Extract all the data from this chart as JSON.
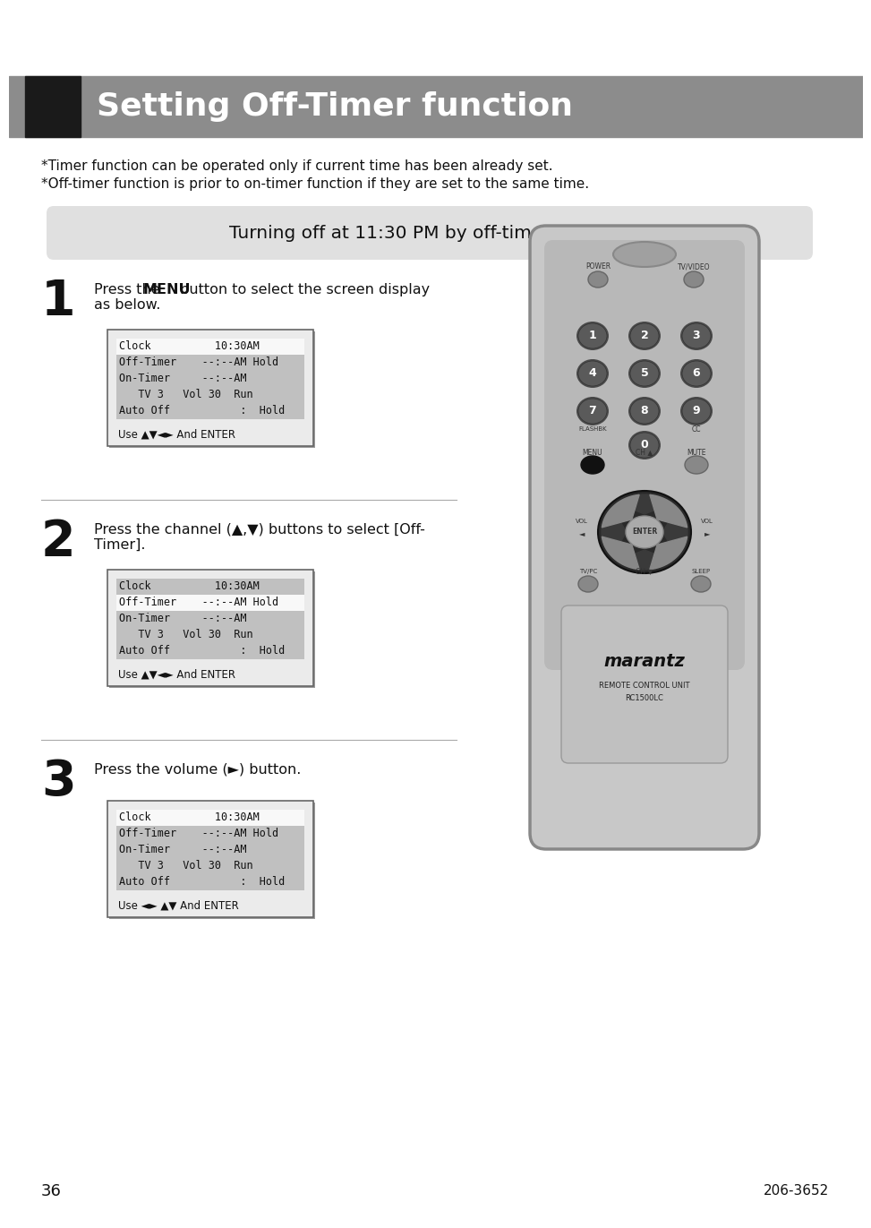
{
  "page_bg": "#ffffff",
  "title_bg": "#8c8c8c",
  "title_black_bg": "#1a1a1a",
  "title_text": "Setting Off-Timer function",
  "title_text_color": "#ffffff",
  "subtitle_bg": "#e0e0e0",
  "subtitle_text": "Turning off at 11:30 PM by off-timer function",
  "note1": "*Timer function can be operated only if current time has been already set.",
  "note2": "*Off-timer function is prior to on-timer function if they are set to the same time.",
  "step1_num": "1",
  "step1_text1": "Press the ",
  "step1_bold": "MENU",
  "step1_text2": " button to select the screen display\nas below.",
  "step2_num": "2",
  "step2_text": "Press the channel (▲,▼) buttons to select [Off-\nTimer].",
  "step3_num": "3",
  "step3_text": "Press the volume (►) button.",
  "page_num": "36",
  "doc_num": "206-3652",
  "screen1": {
    "rows": [
      {
        "text": "Clock          10:30AM",
        "highlight": false
      },
      {
        "text": "Off-Timer    --:--AM Hold",
        "highlight": true
      },
      {
        "text": "On-Timer     --:--AM",
        "highlight": true
      },
      {
        "text": "   TV 3   Vol 30  Run",
        "highlight": true
      },
      {
        "text": "Auto Off           :  Hold",
        "highlight": true
      }
    ],
    "use_text": "Use ▲▼◄► And ENTER"
  },
  "screen2": {
    "rows": [
      {
        "text": "Clock          10:30AM",
        "highlight": true
      },
      {
        "text": "Off-Timer    --:--AM Hold",
        "highlight": false
      },
      {
        "text": "On-Timer     --:--AM",
        "highlight": true
      },
      {
        "text": "   TV 3   Vol 30  Run",
        "highlight": true
      },
      {
        "text": "Auto Off           :  Hold",
        "highlight": true
      }
    ],
    "use_text": "Use ▲▼◄► And ENTER"
  },
  "screen3": {
    "rows": [
      {
        "text": "Clock          10:30AM",
        "highlight": false
      },
      {
        "text": "Off-Timer    --:--AM Hold",
        "highlight": true
      },
      {
        "text": "On-Timer     --:--AM",
        "highlight": true
      },
      {
        "text": "   TV 3   Vol 30  Run",
        "highlight": true
      },
      {
        "text": "Auto Off           :  Hold",
        "highlight": true
      }
    ],
    "use_text": "Use ◄► ▲▼ And ENTER"
  },
  "rc_body_color": "#c0c0c0",
  "rc_body_edge": "#888888",
  "rc_top_dark": "#a0a0a0",
  "rc_btn_dark": "#555555",
  "rc_btn_mid": "#7a7a7a",
  "rc_inner_light": "#d0d0d0",
  "rc_logo_panel": "#b8b8b8"
}
